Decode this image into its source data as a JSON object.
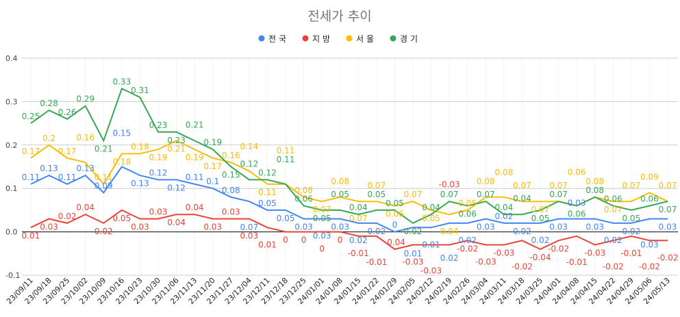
{
  "chart_data": {
    "type": "line",
    "title": "전세가 추이",
    "legend_position": "top",
    "grid": true,
    "ylim": [
      -0.1,
      0.4
    ],
    "yticks": [
      0.4,
      0.3,
      0.2,
      0.1,
      0.0,
      -0.1
    ],
    "ytick_labels": [
      "0.4",
      "0.3",
      "0.2",
      "0.1",
      "0.0",
      "-0.1"
    ],
    "categories": [
      "23/09/11",
      "23/09/18",
      "23/09/25",
      "23/10/02",
      "23/10/09",
      "23/10/16",
      "23/10/23",
      "23/10/30",
      "23/11/06",
      "23/11/13",
      "23/11/20",
      "23/11/27",
      "23/12/04",
      "23/12/11",
      "23/12/18",
      "23/12/25",
      "24/01/01",
      "24/01/08",
      "24/01/15",
      "24/01/22",
      "24/01/29",
      "24/02/05",
      "24/02/12",
      "24/02/19",
      "24/02/26",
      "24/03/04",
      "24/03/11",
      "24/03/18",
      "24/03/25",
      "24/04/01",
      "24/04/08",
      "24/04/15",
      "24/04/22",
      "24/04/29",
      "24/05/06",
      "24/05/13"
    ],
    "series": [
      {
        "name": "전국",
        "color": "#4285f4",
        "values": [
          0.11,
          0.13,
          0.11,
          0.13,
          0.09,
          0.15,
          0.13,
          0.12,
          0.12,
          0.11,
          0.1,
          0.08,
          0.07,
          0.05,
          0.05,
          0.03,
          0.03,
          0.03,
          0.02,
          0.02,
          0,
          0.01,
          0.01,
          0.02,
          0.02,
          0.03,
          0.02,
          0.02,
          0.02,
          0.03,
          0.03,
          0.03,
          0.02,
          0.02,
          0.03,
          0.03
        ]
      },
      {
        "name": "지방",
        "color": "#ea4335",
        "values": [
          0.01,
          0.03,
          0.02,
          0.04,
          0.02,
          0.05,
          0.03,
          0.03,
          0.04,
          0.04,
          0.03,
          0.03,
          0.03,
          0.01,
          0,
          0,
          0,
          0,
          -0.01,
          -0.01,
          -0.04,
          -0.03,
          -0.03,
          -0.03,
          -0.02,
          -0.03,
          -0.03,
          -0.02,
          -0.04,
          -0.02,
          -0.01,
          -0.03,
          -0.02,
          -0.01,
          -0.02,
          -0.02
        ]
      },
      {
        "name": "서울",
        "color": "#fbbc04",
        "values": [
          0.17,
          0.2,
          0.17,
          0.16,
          0.11,
          0.18,
          0.18,
          0.19,
          0.21,
          0.19,
          0.17,
          0.16,
          0.14,
          0.11,
          0.11,
          0.08,
          0.07,
          0.08,
          0.07,
          0.07,
          0.06,
          0.07,
          0.05,
          0.04,
          0.05,
          0.08,
          0.08,
          0.07,
          0.07,
          0.07,
          0.06,
          0.08,
          0.07,
          0.07,
          0.09,
          0.07
        ]
      },
      {
        "name": "경기",
        "color": "#34a853",
        "values": [
          0.25,
          0.28,
          0.26,
          0.29,
          0.21,
          0.33,
          0.31,
          0.23,
          0.23,
          0.21,
          0.19,
          0.15,
          0.12,
          0.12,
          0.11,
          0.06,
          0.05,
          0.05,
          0.04,
          0.05,
          0.05,
          0.02,
          0.04,
          0.07,
          0.06,
          0.07,
          0.04,
          0.04,
          0.05,
          0.07,
          0.06,
          0.08,
          0.06,
          0.05,
          0.06,
          0.07
        ]
      }
    ]
  }
}
